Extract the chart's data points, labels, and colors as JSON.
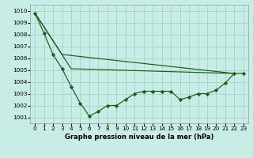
{
  "title": "Graphe pression niveau de la mer (hPa)",
  "background_color": "#c8ece6",
  "grid_color": "#a8d8cc",
  "line_color": "#1a5c1a",
  "xlim": [
    -0.5,
    23.5
  ],
  "ylim": [
    1000.5,
    1010.5
  ],
  "yticks": [
    1001,
    1002,
    1003,
    1004,
    1005,
    1006,
    1007,
    1008,
    1009,
    1010
  ],
  "xticks": [
    0,
    1,
    2,
    3,
    4,
    5,
    6,
    7,
    8,
    9,
    10,
    11,
    12,
    13,
    14,
    15,
    16,
    17,
    18,
    19,
    20,
    21,
    22,
    23
  ],
  "series1_x": [
    0,
    1,
    2,
    3,
    4,
    5,
    6,
    7,
    8,
    9,
    10,
    11,
    12,
    13,
    14,
    15,
    16,
    17,
    18,
    19,
    20,
    21,
    22,
    23
  ],
  "series1_y": [
    1009.8,
    1008.1,
    1006.3,
    1005.1,
    1003.6,
    1002.2,
    1001.1,
    1001.5,
    1002.0,
    1002.0,
    1002.5,
    1003.0,
    1003.2,
    1003.2,
    1003.2,
    1003.2,
    1002.5,
    1002.7,
    1003.0,
    1003.0,
    1003.3,
    1003.9,
    1004.7,
    1004.7
  ],
  "series2_x": [
    0,
    3,
    22
  ],
  "series2_y": [
    1009.8,
    1006.3,
    1004.7
  ],
  "series3_x": [
    0,
    4,
    22
  ],
  "series3_y": [
    1009.8,
    1005.1,
    1004.7
  ],
  "title_fontsize": 6.0,
  "tick_fontsize": 5.2
}
